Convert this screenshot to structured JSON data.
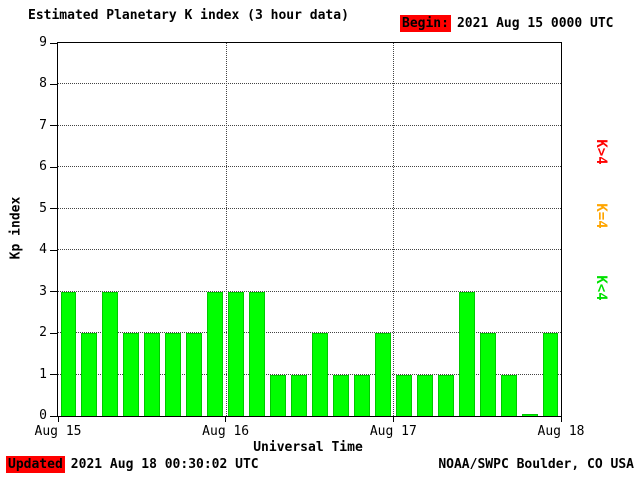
{
  "chart_data": {
    "type": "bar",
    "title": "Estimated Planetary K index (3 hour data)",
    "begin_label": "Begin:",
    "begin_value": "2021 Aug 15 0000 UTC",
    "ylabel": "Kp index",
    "xlabel": "Universal Time",
    "ylim": [
      0,
      9
    ],
    "y_ticks": [
      0,
      1,
      2,
      3,
      4,
      5,
      6,
      7,
      8,
      9
    ],
    "x_tick_labels": [
      "Aug 15",
      "Aug 16",
      "Aug 17",
      "Aug 18"
    ],
    "bars_per_day": 8,
    "bar_interval_hours": 3,
    "values": [
      3,
      2,
      3,
      2,
      2,
      2,
      2,
      3,
      3,
      3,
      1,
      1,
      2,
      1,
      1,
      2,
      1,
      1,
      1,
      3,
      2,
      1,
      0,
      2
    ],
    "grid": "dotted",
    "legend": [
      {
        "label": "K>4",
        "color": "#ff0000",
        "meaning": "Kp greater than 4"
      },
      {
        "label": "K=4",
        "color": "#ffa500",
        "meaning": "Kp equal to 4"
      },
      {
        "label": "K<4",
        "color": "#00e000",
        "meaning": "Kp less than 4"
      }
    ],
    "bar_color_below4": "#00ff00"
  },
  "footer": {
    "updated_label": "Updated",
    "updated_value": "2021 Aug 18 00:30:02 UTC",
    "credit": "NOAA/SWPC Boulder, CO USA"
  }
}
